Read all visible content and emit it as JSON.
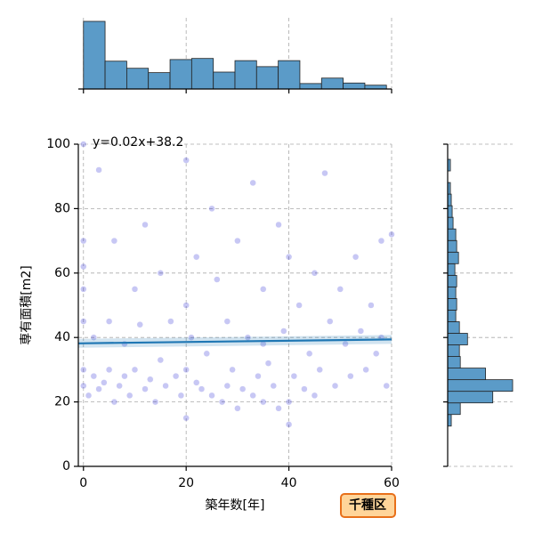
{
  "chart_data": {
    "type": "jointplot",
    "xlabel": "築年数[年]",
    "ylabel": "専有面積[m2]",
    "xlim": [
      -1,
      60
    ],
    "ylim": [
      0,
      100
    ],
    "xticks": [
      0,
      20,
      40,
      60
    ],
    "yticks": [
      0,
      20,
      40,
      60,
      80,
      100
    ],
    "grid": true,
    "point_color": "#0000cc",
    "line_color": "#1f77b4",
    "hist_color": "#5b9bc8",
    "x": [
      0,
      0,
      0,
      0,
      0,
      0,
      0,
      1,
      2,
      2,
      3,
      3,
      4,
      5,
      5,
      6,
      6,
      7,
      8,
      8,
      9,
      10,
      10,
      11,
      12,
      12,
      13,
      14,
      15,
      15,
      16,
      17,
      18,
      19,
      20,
      20,
      20,
      20,
      21,
      22,
      22,
      23,
      24,
      25,
      25,
      26,
      27,
      28,
      28,
      29,
      30,
      30,
      31,
      32,
      33,
      33,
      34,
      35,
      35,
      36,
      37,
      38,
      38,
      39,
      40,
      40,
      40,
      41,
      42,
      43,
      44,
      45,
      46,
      47,
      48,
      49,
      50,
      51,
      52,
      53,
      54,
      55,
      56,
      57,
      58,
      59,
      60,
      58,
      45,
      35
    ],
    "y": [
      100,
      62,
      55,
      45,
      30,
      25,
      70,
      22,
      28,
      40,
      92,
      24,
      26,
      30,
      45,
      20,
      70,
      25,
      28,
      38,
      22,
      30,
      55,
      44,
      24,
      75,
      27,
      20,
      33,
      60,
      25,
      45,
      28,
      22,
      30,
      95,
      15,
      50,
      40,
      26,
      65,
      24,
      35,
      22,
      80,
      58,
      20,
      25,
      45,
      30,
      18,
      70,
      24,
      40,
      22,
      88,
      28,
      55,
      20,
      32,
      25,
      75,
      18,
      42,
      20,
      65,
      13,
      28,
      50,
      24,
      35,
      60,
      30,
      91,
      45,
      25,
      55,
      38,
      28,
      65,
      42,
      30,
      50,
      35,
      70,
      25,
      72,
      40,
      22,
      38
    ],
    "regression": {
      "slope": 0.02,
      "intercept": 38.2,
      "label": "y=0.02x+38.2"
    },
    "x_hist": {
      "bins": [
        0,
        4.21,
        8.43,
        12.64,
        16.86,
        21.07,
        25.29,
        29.5,
        33.71,
        37.93,
        42.14,
        46.36,
        50.57,
        54.79,
        59
      ],
      "counts": [
        124,
        51,
        38,
        30,
        54,
        56,
        31,
        52,
        41,
        52,
        10,
        20,
        11,
        7
      ]
    },
    "y_hist": {
      "bins": [
        12.5,
        16.1,
        19.7,
        23.3,
        26.9,
        30.5,
        34.1,
        37.7,
        41.3,
        44.9,
        48.5,
        52.1,
        55.7,
        59.3,
        62.9,
        66.5,
        70.1,
        73.7,
        77.3,
        80.9,
        84.5,
        88.1,
        91.7,
        95.3,
        98.9
      ],
      "counts": [
        4,
        14,
        50,
        72,
        42,
        14,
        13,
        22,
        13,
        9,
        10,
        9,
        10,
        8,
        12,
        10,
        9,
        6,
        5,
        4,
        3,
        0,
        3,
        0
      ]
    },
    "badge": "千種区"
  }
}
